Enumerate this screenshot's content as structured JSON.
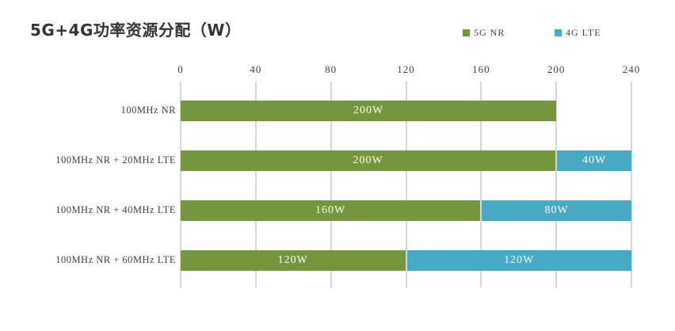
{
  "title": "5G+4G功率资源分配（W）",
  "legend": {
    "items": [
      {
        "label": "5G NR",
        "color": "#74973d",
        "name": "5g-nr"
      },
      {
        "label": "4G LTE",
        "color": "#47a9c4",
        "name": "4g-lte"
      }
    ]
  },
  "chart_data": {
    "type": "bar",
    "orientation": "horizontal",
    "stacked": true,
    "title": "5G+4G功率资源分配（W）",
    "unit": "W",
    "categories": [
      "100MHz NR",
      "100MHz NR + 20MHz LTE",
      "100MHz NR + 40MHz LTE",
      "100MHz NR + 60MHz LTE"
    ],
    "series": [
      {
        "name": "5G NR",
        "color": "#74973d",
        "values": [
          200,
          200,
          160,
          120
        ],
        "labels": [
          "200W",
          "200W",
          "160W",
          "120W"
        ]
      },
      {
        "name": "4G LTE",
        "color": "#47a9c4",
        "values": [
          0,
          40,
          80,
          120
        ],
        "labels": [
          "",
          "40W",
          "80W",
          "120W"
        ]
      }
    ],
    "x_axis": {
      "position": "top",
      "min": 0,
      "max": 240,
      "ticks": [
        0,
        40,
        80,
        120,
        160,
        200,
        240
      ]
    },
    "grid": true,
    "legend_position": "top-right"
  },
  "colors": {
    "nr_green": "#74973d",
    "lte_blue": "#47a9c4",
    "gridline": "#d6d6d6",
    "text": "#3f3f3f",
    "bar_label": "#ffffff",
    "background": "#ffffff"
  }
}
